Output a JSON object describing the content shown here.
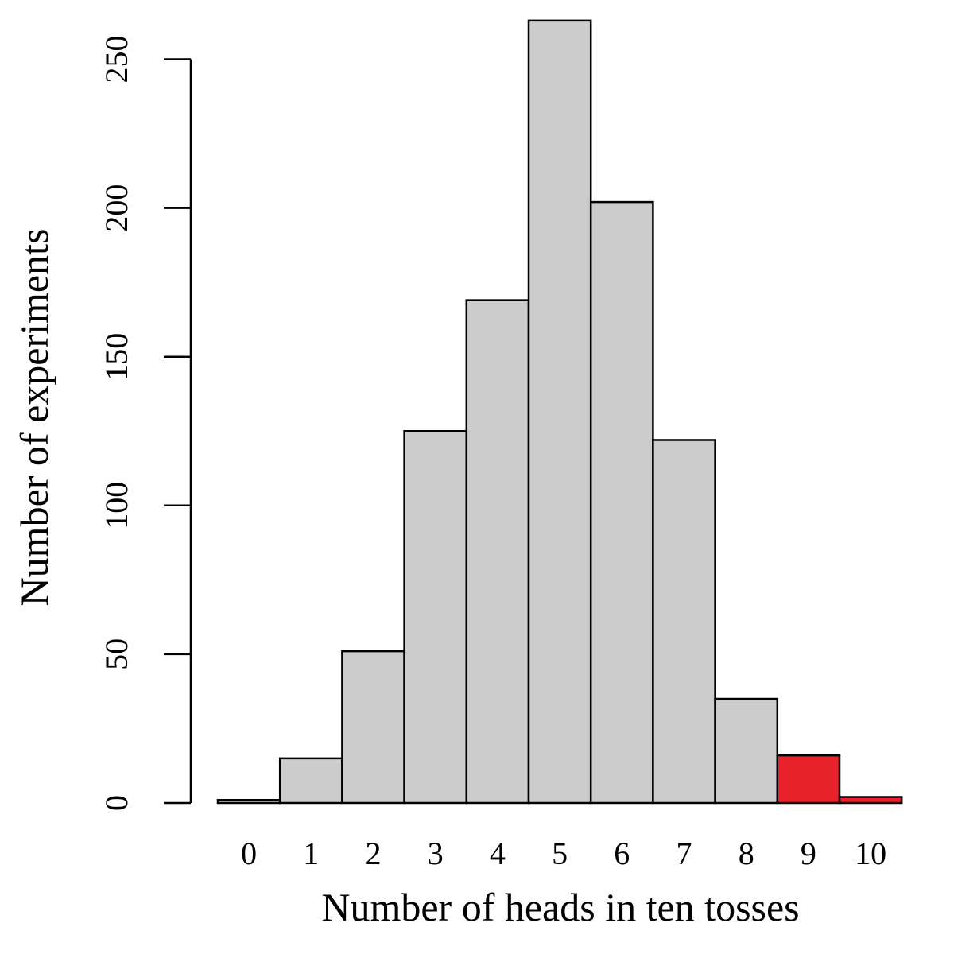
{
  "chart_data": {
    "type": "bar",
    "title": "",
    "xlabel": "Number of heads in ten tosses",
    "ylabel": "Number of experiments",
    "categories": [
      "0",
      "1",
      "2",
      "3",
      "4",
      "5",
      "6",
      "7",
      "8",
      "9",
      "10"
    ],
    "values": [
      1,
      15,
      51,
      125,
      169,
      263,
      202,
      122,
      35,
      16,
      2
    ],
    "highlight_categories": [
      "9",
      "10"
    ],
    "ylim": [
      0,
      263
    ],
    "yticks": [
      0,
      50,
      100,
      150,
      200,
      250
    ],
    "grid": false,
    "legend": "none",
    "colors": {
      "bar_fill": "#cccccc",
      "highlight_fill": "#e8222a",
      "bar_stroke": "#000000",
      "axis": "#000000"
    }
  }
}
